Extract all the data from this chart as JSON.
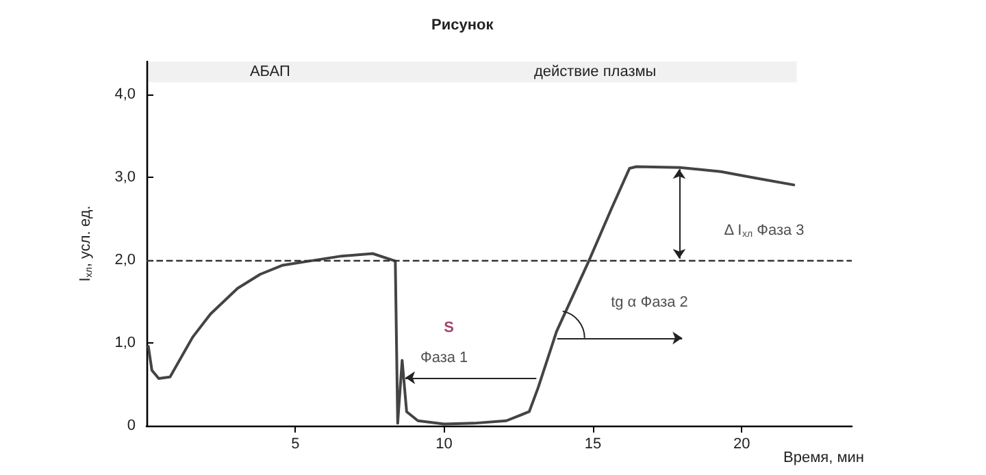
{
  "chart_data": {
    "type": "line",
    "title": "Рисунок",
    "xlabel": "Время, мин",
    "ylabel": "I$_{хл}$, усл. ед.",
    "x": [
      0.06,
      0.18,
      0.41,
      0.79,
      1.55,
      2.15,
      3.06,
      3.82,
      4.58,
      5.48,
      6.55,
      7.6,
      8.36,
      8.44,
      8.59,
      8.74,
      9.12,
      10.0,
      11.0,
      12.09,
      12.86,
      13.16,
      13.78,
      14.85,
      15.62,
      16.23,
      16.46,
      17.92,
      19.3,
      20.51,
      21.75
    ],
    "series": [
      {
        "color": "#444444",
        "values": [
          0.96,
          0.67,
          0.57,
          0.59,
          1.07,
          1.35,
          1.66,
          1.83,
          1.94,
          1.99,
          2.05,
          2.08,
          1.99,
          0.03,
          0.79,
          0.17,
          0.06,
          0.02,
          0.03,
          0.06,
          0.17,
          0.46,
          1.14,
          1.98,
          2.62,
          3.11,
          3.13,
          3.12,
          3.07,
          2.99,
          2.91
        ]
      }
    ],
    "xlim": [
      0,
      23.7
    ],
    "xticks": [
      5,
      10,
      15,
      20
    ],
    "ylim": [
      0,
      4.4
    ],
    "yticks": [
      0,
      {
        "value": 1,
        "label": "1,0"
      },
      {
        "value": 2,
        "label": "2,0"
      },
      {
        "value": 3,
        "label": "3,0"
      },
      {
        "value": 4,
        "label": "4,0"
      }
    ],
    "ref_lines": [
      {
        "axis": "y",
        "value": 2.0,
        "line_style": "dashed",
        "color": "#333333"
      }
    ],
    "bands": [
      {
        "axis": "x",
        "from": 0,
        "to": 8.3,
        "label": "АБАП",
        "color": "#333333"
      },
      {
        "axis": "x",
        "from": 8.3,
        "to": 21.85,
        "label": "действие плазмы",
        "color": "#333333"
      }
    ],
    "annotations": [
      "S",
      "Фаза 1",
      "tg α Фаза 2",
      "Δ I$_{хл}$ Фаза 3"
    ],
    "marker": "none",
    "line_style": "solid",
    "grid": false
  }
}
